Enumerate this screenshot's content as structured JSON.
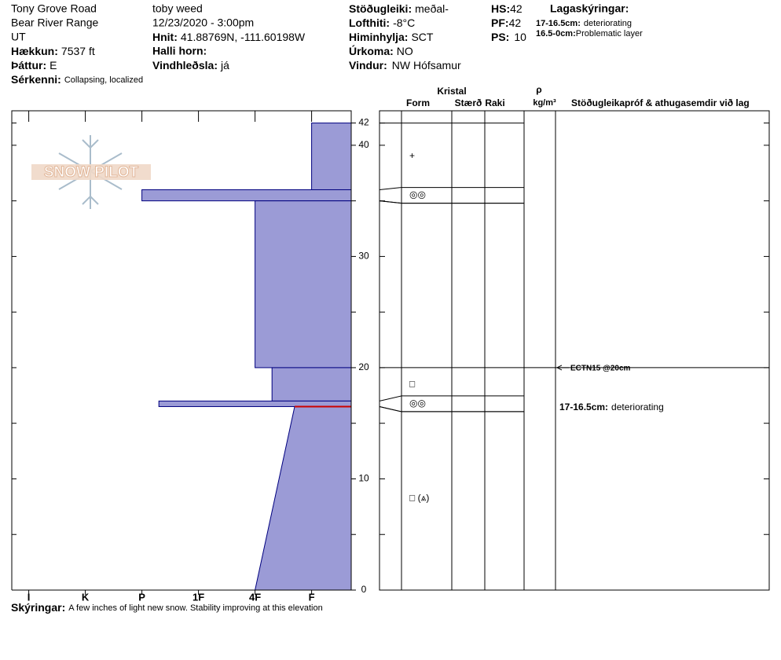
{
  "header": {
    "site": "Tony Grove Road",
    "range": "Bear River Range",
    "state": "UT",
    "elevation": {
      "label": "Hækkun:",
      "value": "7537 ft"
    },
    "aspect": {
      "label": "Þáttur:",
      "value": "E"
    },
    "features": {
      "label": "Sérkenni:",
      "value": "Collapsing, localized"
    },
    "observer": "toby weed",
    "datetime": "12/23/2020 - 3:00pm",
    "coordinates": {
      "label": "Hnit:",
      "value": "41.88769N, -111.60198W"
    },
    "slope_angle": {
      "label": "Halli horn:"
    },
    "wind_loading": {
      "label": "Vindhleðsla:",
      "value": "já"
    },
    "stability": {
      "label": "Stöðugleiki:",
      "value": "meðal-"
    },
    "air_temp": {
      "label": "Lofthiti:",
      "value": "-8°C"
    },
    "sky": {
      "label": "Himinhylja:",
      "value": "SCT"
    },
    "precip": {
      "label": "Úrkoma:",
      "value": "NO"
    },
    "wind": {
      "label": "Vindur:",
      "value": "NW Hófsamur"
    },
    "hs": {
      "label": "HS:",
      "value": 42
    },
    "pf": {
      "label": "PF:",
      "value": 42
    },
    "ps": {
      "label": "PS:",
      "value": 10
    },
    "layer_notes": {
      "title": "Lagaskýringar:",
      "items": [
        {
          "range": "17-16.5cm:",
          "text": "deteriorating"
        },
        {
          "range": "16.5-0cm:",
          "text": "Problematic layer"
        }
      ]
    }
  },
  "logo": "SNOW PILOT",
  "chart_data": {
    "type": "snow-profile",
    "ylim": [
      0,
      43.1
    ],
    "yticks": [
      0,
      10,
      20,
      30,
      40,
      42
    ],
    "yminor": [
      5,
      15,
      25,
      35
    ],
    "xlim": [
      6.3,
      0.3
    ],
    "xticks": [
      {
        "value": 6,
        "label": "I"
      },
      {
        "value": 5,
        "label": "K"
      },
      {
        "value": 4,
        "label": "P"
      },
      {
        "value": 3,
        "label": "1F"
      },
      {
        "value": 2,
        "label": "4F"
      },
      {
        "value": 1,
        "label": "F"
      }
    ],
    "fill": "#9b9bd6",
    "edge": "#00007f",
    "problem_color": "#cc0000",
    "layers": [
      {
        "top": 42,
        "bottom": 36,
        "hardness": 1,
        "form": "+"
      },
      {
        "top": 36,
        "bottom": 35,
        "hardness": 4,
        "form": "◎◎"
      },
      {
        "top": 35,
        "bottom": 20,
        "hardness": 2
      },
      {
        "top": 20,
        "bottom": 17,
        "hardness": 1.7,
        "form": "□"
      },
      {
        "top": 17,
        "bottom": 16.5,
        "hardness": 3.7,
        "form": "◎◎",
        "comment": {
          "range": "17-16.5cm:",
          "text": "deteriorating"
        }
      },
      {
        "top": 16.5,
        "bottom": 0,
        "hardness": 1.3,
        "hardness_bottom": 2,
        "form": "□ (⩓)",
        "problematic": true
      }
    ],
    "columns": {
      "crystal": "Kristal",
      "form": "Form",
      "size": "Stærð",
      "moisture": "Raki",
      "density_symbol": "ρ",
      "density_unit": "kg/m³",
      "tests": "Stöðugleikapróf & athugasemdir við lag"
    },
    "tests": [
      {
        "depth": 20,
        "label": "ECTN15 @20cm"
      }
    ]
  },
  "notes": {
    "label": "Skýringar:",
    "text": "A few inches of light new snow. Stability improving at this elevation"
  }
}
